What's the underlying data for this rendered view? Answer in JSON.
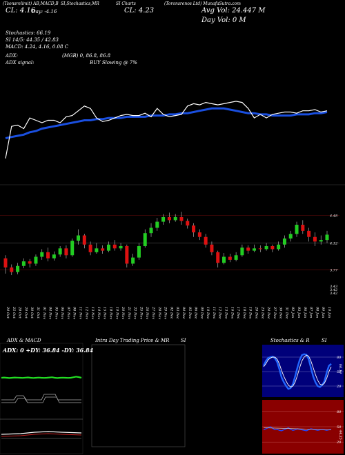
{
  "header": {
    "line1_left": "(Tsonsrelimit) AB,MACD,B",
    "line1_mid1": "SI,Stochastics,MR",
    "line1_mid2": "SI Charts",
    "line1_right": "(Toronsrenos Ltd) MunafaSutra.com",
    "close_left": "CL: 4.16",
    "day_left": "Day: -4.16",
    "close_mid": "CL: 4.23",
    "avg_vol": "Avg Vol: 24.447 M",
    "day_vol": "Day Vol: 0  M"
  },
  "indicators": {
    "stochastics": "Stochastics: 66.19",
    "si": "SI 14/5: 44.35 / 42.83",
    "macd": "MACD: 4.24, 4.16, 0.08  C",
    "adx": "ADX:",
    "adx_values": "(MGB) 0, 86.8,  86.8",
    "adx_signal": "ADX  signal:",
    "buy_signal": "BUY Slowing @ 7%"
  },
  "price_labels": [
    "4.48",
    "4.12",
    "3.77",
    "3.43",
    "3.42",
    "3.42"
  ],
  "dates": [
    "24 Oct",
    "25 Oct",
    "28 Oct",
    "29 Oct",
    "30 Oct",
    "31 Oct",
    "01 Nov",
    "04 Nov",
    "05 Nov",
    "06 Nov",
    "07 Nov",
    "08 Nov",
    "11 Nov",
    "12 Nov",
    "13 Nov",
    "14 Nov",
    "15 Nov",
    "18 Nov",
    "19 Nov",
    "20 Nov",
    "21 Nov",
    "22 Nov",
    "25 Nov",
    "26 Nov",
    "27 Nov",
    "28 Nov",
    "29 Nov",
    "02 Dec",
    "03 Dec",
    "04 Dec",
    "05 Dec",
    "06 Dec",
    "09 Dec",
    "10 Dec",
    "11 Dec",
    "12 Dec",
    "13 Dec",
    "16 Dec",
    "17 Dec",
    "18 Dec",
    "19 Dec",
    "20 Dec",
    "23 Dec",
    "24 Dec",
    "27 Dec",
    "30 Dec",
    "31 Dec",
    "02 Jan",
    "03 Jan",
    "06 Jan",
    "07 Jan",
    "08 Jan",
    "09 Jan",
    "10 Jan"
  ],
  "panels": {
    "adx_title": "ADX  & MACD",
    "adx_readout": "ADX: 0  +DY: 36.84  -DY: 36.84",
    "intraday_title": "Intra  Day Trading Price  & MR",
    "intraday_si": "SI",
    "stoch_title": "Stochastics & R",
    "stoch_si": "SI",
    "stoch_levels": [
      "80",
      "50",
      "20"
    ],
    "rsi_levels": [
      "80",
      "50",
      "20"
    ],
    "stoch_value": "66.19",
    "rsi_value": "44.35"
  },
  "colors": {
    "background": "#000000",
    "ma_line": "#1a4fe0",
    "price_line": "#ffffff",
    "candle_up": "#22cc22",
    "candle_down": "#dd1111",
    "adx_green": "#22dd22",
    "stoch_bg": "#00007a",
    "rsi_bg": "#8a0000"
  },
  "chart_data": {
    "type": "line",
    "x": [
      "24 Oct",
      "25 Oct",
      "28 Oct",
      "29 Oct",
      "30 Oct",
      "31 Oct",
      "01 Nov",
      "04 Nov",
      "05 Nov",
      "06 Nov",
      "07 Nov",
      "08 Nov",
      "11 Nov",
      "12 Nov",
      "13 Nov",
      "14 Nov",
      "15 Nov",
      "18 Nov",
      "19 Nov",
      "20 Nov",
      "21 Nov",
      "22 Nov",
      "25 Nov",
      "26 Nov",
      "27 Nov",
      "28 Nov",
      "29 Nov",
      "02 Dec",
      "03 Dec",
      "04 Dec",
      "05 Dec",
      "06 Dec",
      "09 Dec",
      "10 Dec",
      "11 Dec",
      "12 Dec",
      "13 Dec",
      "16 Dec",
      "17 Dec",
      "18 Dec",
      "19 Dec",
      "20 Dec",
      "23 Dec",
      "24 Dec",
      "27 Dec",
      "30 Dec",
      "31 Dec",
      "02 Jan",
      "03 Jan",
      "06 Jan",
      "07 Jan",
      "08 Jan",
      "09 Jan",
      "10 Jan"
    ],
    "series": [],
    "candles": [
      {
        "o": 3.92,
        "c": 3.8,
        "h": 3.96,
        "l": 3.72
      },
      {
        "o": 3.8,
        "c": 3.74,
        "h": 3.84,
        "l": 3.7
      },
      {
        "o": 3.74,
        "c": 3.82,
        "h": 3.86,
        "l": 3.71
      },
      {
        "o": 3.82,
        "c": 3.88,
        "h": 3.92,
        "l": 3.79
      },
      {
        "o": 3.88,
        "c": 3.85,
        "h": 3.91,
        "l": 3.8
      },
      {
        "o": 3.85,
        "c": 3.94,
        "h": 3.97,
        "l": 3.82
      },
      {
        "o": 3.94,
        "c": 4.0,
        "h": 4.04,
        "l": 3.9
      },
      {
        "o": 4.0,
        "c": 3.92,
        "h": 4.06,
        "l": 3.88
      },
      {
        "o": 3.92,
        "c": 3.97,
        "h": 4.01,
        "l": 3.89
      },
      {
        "o": 3.97,
        "c": 4.05,
        "h": 4.08,
        "l": 3.94
      },
      {
        "o": 4.05,
        "c": 3.96,
        "h": 4.09,
        "l": 3.92
      },
      {
        "o": 3.96,
        "c": 4.15,
        "h": 4.18,
        "l": 3.94
      },
      {
        "o": 4.15,
        "c": 4.22,
        "h": 4.3,
        "l": 4.1
      },
      {
        "o": 4.22,
        "c": 4.1,
        "h": 4.24,
        "l": 4.05
      },
      {
        "o": 4.1,
        "c": 4.0,
        "h": 4.14,
        "l": 3.96
      },
      {
        "o": 4.0,
        "c": 4.05,
        "h": 4.12,
        "l": 3.98
      },
      {
        "o": 4.05,
        "c": 4.02,
        "h": 4.09,
        "l": 3.98
      },
      {
        "o": 4.02,
        "c": 4.1,
        "h": 4.14,
        "l": 4.0
      },
      {
        "o": 4.1,
        "c": 4.05,
        "h": 4.16,
        "l": 4.02
      },
      {
        "o": 4.05,
        "c": 4.08,
        "h": 4.12,
        "l": 4.02
      },
      {
        "o": 4.08,
        "c": 3.85,
        "h": 4.1,
        "l": 3.8
      },
      {
        "o": 3.85,
        "c": 3.93,
        "h": 3.98,
        "l": 3.82
      },
      {
        "o": 3.93,
        "c": 4.08,
        "h": 4.12,
        "l": 3.9
      },
      {
        "o": 4.08,
        "c": 4.25,
        "h": 4.3,
        "l": 4.06
      },
      {
        "o": 4.25,
        "c": 4.32,
        "h": 4.38,
        "l": 4.2
      },
      {
        "o": 4.32,
        "c": 4.4,
        "h": 4.45,
        "l": 4.28
      },
      {
        "o": 4.4,
        "c": 4.46,
        "h": 4.5,
        "l": 4.36
      },
      {
        "o": 4.46,
        "c": 4.42,
        "h": 4.52,
        "l": 4.38
      },
      {
        "o": 4.42,
        "c": 4.46,
        "h": 4.5,
        "l": 4.4
      },
      {
        "o": 4.46,
        "c": 4.41,
        "h": 4.53,
        "l": 4.36
      },
      {
        "o": 4.41,
        "c": 4.35,
        "h": 4.44,
        "l": 4.31
      },
      {
        "o": 4.35,
        "c": 4.26,
        "h": 4.38,
        "l": 4.2
      },
      {
        "o": 4.26,
        "c": 4.2,
        "h": 4.3,
        "l": 4.16
      },
      {
        "o": 4.2,
        "c": 4.1,
        "h": 4.24,
        "l": 4.06
      },
      {
        "o": 4.1,
        "c": 4.0,
        "h": 4.14,
        "l": 3.96
      },
      {
        "o": 4.0,
        "c": 3.86,
        "h": 4.02,
        "l": 3.8
      },
      {
        "o": 3.86,
        "c": 3.94,
        "h": 3.99,
        "l": 3.84
      },
      {
        "o": 3.94,
        "c": 3.9,
        "h": 3.98,
        "l": 3.87
      },
      {
        "o": 3.9,
        "c": 3.96,
        "h": 4.0,
        "l": 3.88
      },
      {
        "o": 3.96,
        "c": 4.06,
        "h": 4.1,
        "l": 3.94
      },
      {
        "o": 4.06,
        "c": 4.02,
        "h": 4.09,
        "l": 3.98
      },
      {
        "o": 4.02,
        "c": 4.05,
        "h": 4.1,
        "l": 4.0
      },
      {
        "o": 4.05,
        "c": 4.04,
        "h": 4.09,
        "l": 4.0
      },
      {
        "o": 4.04,
        "c": 4.08,
        "h": 4.12,
        "l": 4.02
      },
      {
        "o": 4.08,
        "c": 4.04,
        "h": 4.1,
        "l": 4.0
      },
      {
        "o": 4.04,
        "c": 4.1,
        "h": 4.14,
        "l": 4.02
      },
      {
        "o": 4.1,
        "c": 4.18,
        "h": 4.22,
        "l": 4.06
      },
      {
        "o": 4.18,
        "c": 4.24,
        "h": 4.28,
        "l": 4.14
      },
      {
        "o": 4.24,
        "c": 4.36,
        "h": 4.4,
        "l": 4.2
      },
      {
        "o": 4.36,
        "c": 4.28,
        "h": 4.42,
        "l": 4.24
      },
      {
        "o": 4.28,
        "c": 4.2,
        "h": 4.32,
        "l": 4.14
      },
      {
        "o": 4.2,
        "c": 4.14,
        "h": 4.26,
        "l": 4.08
      },
      {
        "o": 4.14,
        "c": 4.16,
        "h": 4.22,
        "l": 4.1
      },
      {
        "o": 4.16,
        "c": 4.23,
        "h": 4.28,
        "l": 4.12
      }
    ],
    "price_line": [
      3.68,
      3.95,
      3.96,
      3.93,
      4.02,
      4.0,
      3.98,
      4.0,
      4.0,
      3.98,
      4.03,
      4.04,
      4.08,
      4.12,
      4.1,
      4.02,
      3.99,
      4.0,
      4.02,
      4.04,
      4.05,
      4.04,
      4.04,
      4.06,
      4.03,
      4.1,
      4.05,
      4.03,
      4.04,
      4.05,
      4.12,
      4.14,
      4.13,
      4.15,
      4.14,
      4.13,
      4.14,
      4.15,
      4.16,
      4.15,
      4.1,
      4.02,
      4.05,
      4.02,
      4.05,
      4.06,
      4.07,
      4.07,
      4.06,
      4.08,
      4.08,
      4.09,
      4.07,
      4.08
    ],
    "ma_line": [
      3.85,
      3.86,
      3.87,
      3.88,
      3.9,
      3.91,
      3.93,
      3.94,
      3.95,
      3.96,
      3.97,
      3.98,
      3.99,
      4.0,
      4.0,
      4.01,
      4.01,
      4.02,
      4.02,
      4.02,
      4.03,
      4.03,
      4.03,
      4.03,
      4.04,
      4.04,
      4.04,
      4.05,
      4.05,
      4.06,
      4.06,
      4.07,
      4.08,
      4.09,
      4.1,
      4.1,
      4.1,
      4.09,
      4.08,
      4.07,
      4.06,
      4.06,
      4.05,
      4.05,
      4.04,
      4.04,
      4.04,
      4.04,
      4.05,
      4.05,
      4.05,
      4.06,
      4.06,
      4.07
    ],
    "stochastic": [
      62,
      72,
      78,
      80,
      81,
      78,
      70,
      55,
      38,
      28,
      20,
      14,
      16,
      24,
      40,
      58,
      74,
      84,
      86,
      85,
      76,
      58,
      40,
      28,
      20,
      18,
      22,
      30,
      48,
      62,
      66
    ],
    "stochastic_signal": [
      60,
      66,
      74,
      78,
      80,
      80,
      76,
      66,
      52,
      40,
      30,
      22,
      18,
      20,
      28,
      42,
      58,
      72,
      80,
      84,
      82,
      72,
      58,
      44,
      32,
      24,
      22,
      26,
      36,
      50,
      60
    ],
    "rsi": [
      44,
      46,
      48,
      50,
      47,
      44,
      45,
      43,
      42,
      44,
      46,
      48,
      45,
      43,
      44,
      46,
      45,
      44,
      43,
      42,
      44,
      46,
      45,
      44,
      43,
      44,
      45,
      44,
      43,
      44,
      44.35
    ],
    "adx": [
      0.5,
      0.55,
      0.5,
      0.45,
      0.5,
      0.55,
      0.52,
      0.5,
      0.48,
      0.52,
      0.56,
      0.5,
      0.46,
      0.5,
      0.54,
      0.5,
      0.48,
      0.5,
      0.55,
      0.6,
      0.5,
      0.45,
      0.5,
      0.52,
      0.5,
      0.48,
      0.5,
      0.6,
      0.7,
      0.62,
      0.5
    ]
  }
}
